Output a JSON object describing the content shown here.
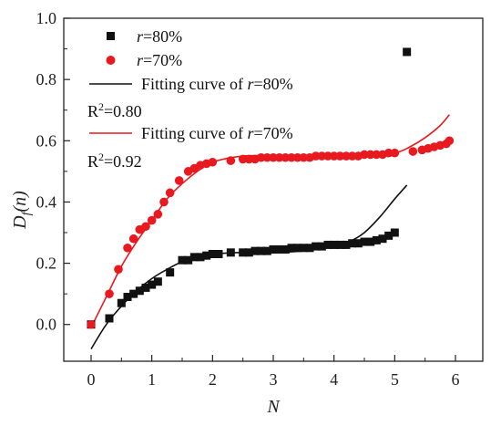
{
  "chart_data": {
    "type": "scatter",
    "xlabel": "N",
    "ylabel": "D_f(n)",
    "xlim": [
      -0.45,
      6.45
    ],
    "ylim": [
      -0.12,
      1.0
    ],
    "x_ticks": [
      "0",
      "1",
      "2",
      "3",
      "4",
      "5",
      "6"
    ],
    "y_ticks": [
      "0.0",
      "0.2",
      "0.4",
      "0.6",
      "0.8",
      "1.0"
    ],
    "grid": false,
    "legend_position": "top-left",
    "series": [
      {
        "name": "r=80%",
        "kind": "points",
        "marker": "square",
        "color": "#111111",
        "x": [
          0,
          0.3,
          0.5,
          0.6,
          0.7,
          0.8,
          0.9,
          1.0,
          1.1,
          1.3,
          1.5,
          1.6,
          1.7,
          1.8,
          1.9,
          2.0,
          2.1,
          2.3,
          2.5,
          2.6,
          2.7,
          2.8,
          2.9,
          3.0,
          3.1,
          3.2,
          3.3,
          3.4,
          3.5,
          3.6,
          3.7,
          3.8,
          3.9,
          4.0,
          4.1,
          4.2,
          4.3,
          4.4,
          4.5,
          4.6,
          4.7,
          4.8,
          4.9,
          5.0,
          5.2
        ],
        "y": [
          0.0,
          0.02,
          0.07,
          0.09,
          0.1,
          0.11,
          0.12,
          0.13,
          0.14,
          0.17,
          0.21,
          0.21,
          0.22,
          0.22,
          0.225,
          0.23,
          0.23,
          0.235,
          0.235,
          0.235,
          0.24,
          0.24,
          0.24,
          0.245,
          0.245,
          0.245,
          0.25,
          0.25,
          0.25,
          0.25,
          0.255,
          0.255,
          0.26,
          0.26,
          0.26,
          0.26,
          0.265,
          0.265,
          0.27,
          0.27,
          0.275,
          0.28,
          0.29,
          0.3,
          0.89
        ]
      },
      {
        "name": "r=70%",
        "kind": "points",
        "marker": "circle",
        "color": "#e8191f",
        "x": [
          0,
          0.3,
          0.45,
          0.6,
          0.7,
          0.8,
          0.9,
          1.0,
          1.1,
          1.2,
          1.3,
          1.45,
          1.6,
          1.7,
          1.8,
          1.9,
          2.0,
          2.3,
          2.5,
          2.6,
          2.7,
          2.8,
          2.9,
          3.0,
          3.1,
          3.2,
          3.3,
          3.4,
          3.5,
          3.6,
          3.7,
          3.8,
          3.9,
          4.0,
          4.1,
          4.2,
          4.3,
          4.4,
          4.5,
          4.6,
          4.7,
          4.8,
          4.9,
          5.0,
          5.3,
          5.45,
          5.55,
          5.65,
          5.75,
          5.85,
          5.9
        ],
        "y": [
          0.0,
          0.1,
          0.18,
          0.25,
          0.28,
          0.31,
          0.32,
          0.34,
          0.36,
          0.4,
          0.43,
          0.47,
          0.5,
          0.51,
          0.52,
          0.525,
          0.53,
          0.535,
          0.54,
          0.54,
          0.54,
          0.545,
          0.545,
          0.545,
          0.545,
          0.545,
          0.545,
          0.545,
          0.545,
          0.545,
          0.55,
          0.55,
          0.55,
          0.55,
          0.55,
          0.55,
          0.55,
          0.55,
          0.555,
          0.555,
          0.555,
          0.555,
          0.56,
          0.56,
          0.565,
          0.57,
          0.575,
          0.58,
          0.585,
          0.59,
          0.6
        ]
      },
      {
        "name": "Fitting curve of r=80%",
        "kind": "line",
        "color": "#111111",
        "x": [
          0,
          0.25,
          0.5,
          0.75,
          1.0,
          1.25,
          1.5,
          1.75,
          2.0,
          2.5,
          3.0,
          3.5,
          4.0,
          4.25,
          4.5,
          4.75,
          5.0,
          5.2
        ],
        "y": [
          -0.08,
          0.0,
          0.06,
          0.11,
          0.15,
          0.18,
          0.205,
          0.22,
          0.23,
          0.235,
          0.235,
          0.24,
          0.255,
          0.27,
          0.3,
          0.35,
          0.41,
          0.455
        ]
      },
      {
        "name": "Fitting curve of r=70%",
        "kind": "line",
        "color": "#e8191f",
        "x": [
          0,
          0.25,
          0.5,
          0.75,
          1.0,
          1.25,
          1.5,
          1.75,
          2.0,
          2.5,
          3.0,
          3.5,
          4.0,
          4.5,
          5.0,
          5.25,
          5.5,
          5.75,
          5.9
        ],
        "y": [
          -0.01,
          0.09,
          0.19,
          0.27,
          0.34,
          0.41,
          0.46,
          0.5,
          0.53,
          0.55,
          0.55,
          0.545,
          0.545,
          0.55,
          0.56,
          0.58,
          0.61,
          0.65,
          0.685
        ]
      }
    ],
    "annotations": [
      {
        "text_base": "R",
        "text_sup": "2",
        "text_rest": "=0.80"
      },
      {
        "text_base": "R",
        "text_sup": "2",
        "text_rest": "=0.92"
      }
    ]
  },
  "legend": {
    "items": [
      {
        "prefix": "",
        "var": "r",
        "suffix": "=80%"
      },
      {
        "prefix": "",
        "var": "r",
        "suffix": "=70%"
      },
      {
        "prefix": "Fitting curve of ",
        "var": "r",
        "suffix": "=80%"
      },
      {
        "prefix": "Fitting curve of ",
        "var": "r",
        "suffix": "=70%"
      }
    ]
  },
  "axes": {
    "x_title": "N",
    "y_title_base": "D",
    "y_title_sub": "f",
    "y_title_rest": "(n)"
  }
}
